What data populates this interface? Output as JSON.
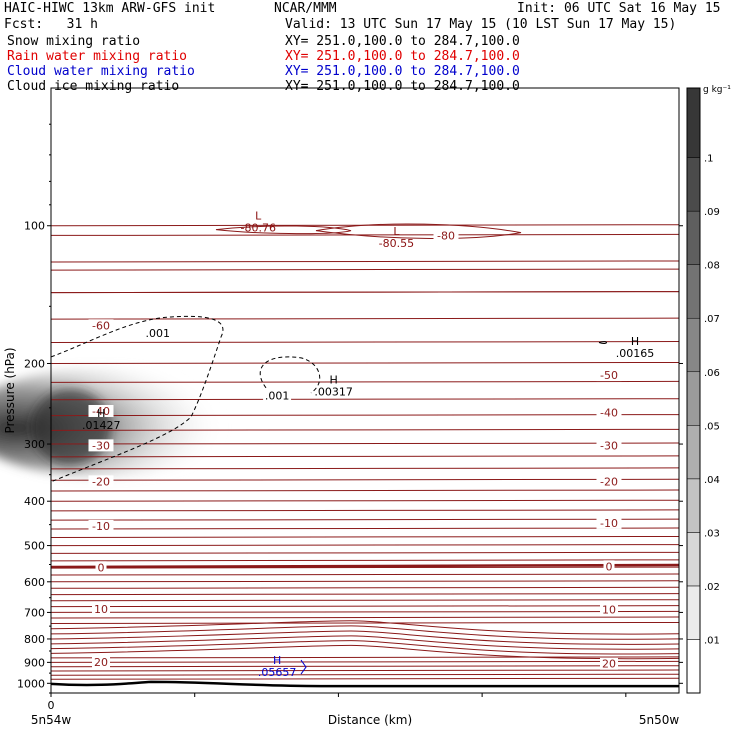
{
  "header": {
    "model": "HAIC-HIWC 13km ARW-GFS init",
    "org": "NCAR/MMM",
    "init": "Init: 06 UTC Sat 16 May 15",
    "fcst": "Fcst:   31 h",
    "valid": "Valid: 13 UTC Sun 17 May 15 (10 LST Sun 17 May 15)",
    "fields": [
      {
        "name": "Snow mixing ratio",
        "xy": "XY= 251.0,100.0 to 284.7,100.0",
        "color": "#000000"
      },
      {
        "name": "Rain water mixing ratio",
        "xy": "XY= 251.0,100.0 to 284.7,100.0",
        "color": "#e00000"
      },
      {
        "name": "Cloud water mixing ratio",
        "xy": "XY= 251.0,100.0 to 284.7,100.0",
        "color": "#0000cc"
      },
      {
        "name": "Cloud ice mixing ratio",
        "xy": "XY= 251.0,100.0 to 284.7,100.0",
        "color": "#000000"
      }
    ]
  },
  "chart_data": {
    "type": "heatmap",
    "xlabel": "Distance (km)",
    "ylabel": "Pressure (hPa)",
    "y_scale": "log",
    "ylim": [
      1050,
      50
    ],
    "y_ticks": [
      100,
      200,
      300,
      400,
      500,
      600,
      700,
      800,
      900,
      1000
    ],
    "x_ticks": [
      "0"
    ],
    "x_endpoints": {
      "left": "5n54w",
      "right": "5n50w"
    },
    "colorbar": {
      "units": "g kg⁻¹",
      "ticks": [
        ".01",
        ".02",
        ".03",
        ".04",
        ".05",
        ".06",
        ".07",
        ".08",
        ".09",
        ".1"
      ],
      "top_label": ".1"
    },
    "isotherms_c": [
      -80,
      -60,
      -50,
      -40,
      -30,
      -20,
      -10,
      0,
      10,
      20
    ],
    "isotherm_labels": [
      {
        "text": "-60",
        "p": 165,
        "pos": "left"
      },
      {
        "text": "-50",
        "p": 212,
        "pos": "right"
      },
      {
        "text": "-40",
        "p": 254,
        "pos": "left"
      },
      {
        "text": "-40",
        "p": 256,
        "pos": "right"
      },
      {
        "text": "-30",
        "p": 302,
        "pos": "left"
      },
      {
        "text": "-30",
        "p": 302,
        "pos": "right"
      },
      {
        "text": "-20",
        "p": 362,
        "pos": "left"
      },
      {
        "text": "-20",
        "p": 362,
        "pos": "right"
      },
      {
        "text": "-10",
        "p": 453,
        "pos": "left"
      },
      {
        "text": "-10",
        "p": 446,
        "pos": "right"
      },
      {
        "text": "0",
        "p": 558,
        "pos": "left"
      },
      {
        "text": "0",
        "p": 555,
        "pos": "right"
      },
      {
        "text": "10",
        "p": 688,
        "pos": "left"
      },
      {
        "text": "10",
        "p": 690,
        "pos": "right"
      },
      {
        "text": "20",
        "p": 898,
        "pos": "left"
      },
      {
        "text": "20",
        "p": 906,
        "pos": "right"
      },
      {
        "text": "-80",
        "p": 105,
        "pos": "mid"
      }
    ],
    "extrema": [
      {
        "type": "L",
        "value": "-80.76",
        "p": 100,
        "x_frac": 0.33,
        "color": "#8b1010"
      },
      {
        "type": "L",
        "value": "-80.55",
        "p": 108,
        "x_frac": 0.55,
        "color": "#8b1010"
      },
      {
        "type": "H",
        "value": ".00165",
        "p": 188,
        "x_frac": 0.93,
        "color": "#000000"
      },
      {
        "type": "H",
        "value": ".00317",
        "p": 228,
        "x_frac": 0.45,
        "color": "#000000"
      },
      {
        "type": "H",
        "value": ".01427",
        "p": 270,
        "x_frac": 0.08,
        "color": "#000000"
      },
      {
        "type": "H",
        "value": ".05657",
        "p": 935,
        "x_frac": 0.36,
        "color": "#0000cc"
      }
    ],
    "contour_labels": [
      {
        "text": ".001",
        "p": 175,
        "x_frac": 0.17
      },
      {
        "text": ".001",
        "p": 240,
        "x_frac": 0.36
      }
    ],
    "snow_max_g_kg": 0.014,
    "snow_core_p": 290
  }
}
